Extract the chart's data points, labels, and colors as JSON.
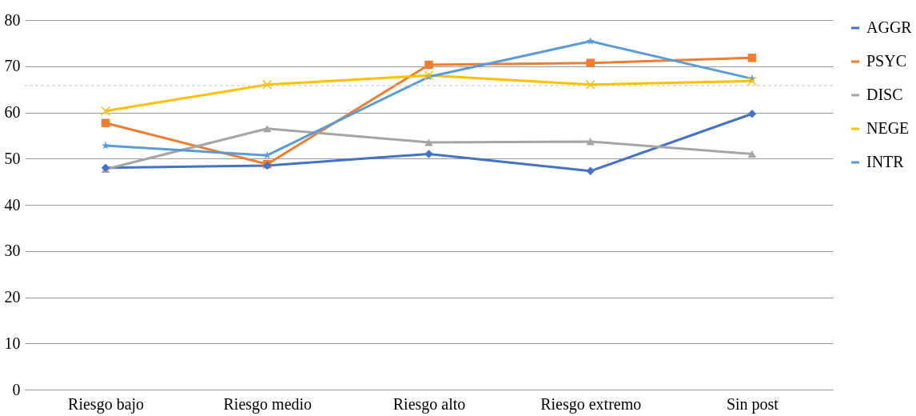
{
  "chart_data": {
    "type": "line",
    "categories": [
      "Riesgo bajo",
      "Riesgo medio",
      "Riesgo alto",
      "Riesgo extremo",
      "Sin post"
    ],
    "series": [
      {
        "name": "AGGR",
        "color": "#4472c4",
        "marker": "diamond",
        "values": [
          48,
          48.5,
          51,
          47.3,
          59.7
        ]
      },
      {
        "name": "PSYC",
        "color": "#ed7d31",
        "marker": "square",
        "values": [
          57.7,
          48.8,
          70.3,
          70.7,
          71.8
        ]
      },
      {
        "name": "DISC",
        "color": "#a5a5a5",
        "marker": "triangle",
        "values": [
          47.7,
          56.5,
          53.5,
          53.7,
          51
        ]
      },
      {
        "name": "NEGE",
        "color": "#ffc000",
        "marker": "cross",
        "values": [
          60.3,
          66,
          68,
          66,
          66.8
        ]
      },
      {
        "name": "INTR",
        "color": "#5b9bd5",
        "marker": "star",
        "values": [
          52.8,
          50.7,
          67.7,
          75.4,
          67.3
        ]
      }
    ],
    "ylim": [
      0,
      80
    ],
    "yticks": [
      0,
      10,
      20,
      30,
      40,
      50,
      60,
      70,
      80
    ],
    "grid": "y",
    "legend": "right",
    "ref_lines": [
      {
        "axis": "y",
        "value": 65.8,
        "color": "#bfbfbf",
        "line_style": "dashed"
      }
    ]
  }
}
